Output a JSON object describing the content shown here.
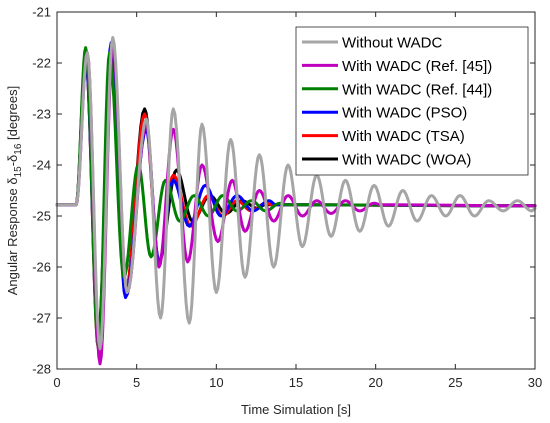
{
  "chart_data": {
    "type": "line",
    "xlabel": "Time Simulation [s]",
    "ylabel": {
      "prefix": "Angular Response ",
      "d1": "δ",
      "s1": "15",
      "mid": "-δ",
      "s2": "16",
      "suffix": " [degrees]"
    },
    "xlim": [
      0,
      30
    ],
    "ylim": [
      -28,
      -21
    ],
    "xticks": [
      0,
      5,
      10,
      15,
      20,
      25,
      30
    ],
    "yticks": [
      -28,
      -27,
      -26,
      -25,
      -24,
      -23,
      -22,
      -21
    ],
    "grid": false,
    "legend_position": "top-right",
    "steady_state": -24.78,
    "event_time": 1.2,
    "series": [
      {
        "name": "Without WADC",
        "color": "#a6a6a6",
        "peaks": [
          [
            1.9,
            -21.8
          ],
          [
            2.7,
            -27.6
          ],
          [
            3.5,
            -21.5
          ],
          [
            4.4,
            -26.5
          ],
          [
            5.6,
            -23.1
          ],
          [
            6.5,
            -27.0
          ],
          [
            7.3,
            -22.9
          ],
          [
            8.3,
            -27.1
          ],
          [
            9.1,
            -23.2
          ],
          [
            10.0,
            -26.5
          ],
          [
            10.9,
            -23.5
          ],
          [
            11.8,
            -26.2
          ],
          [
            12.7,
            -23.8
          ],
          [
            13.6,
            -26.0
          ],
          [
            14.5,
            -24.0
          ],
          [
            15.4,
            -25.6
          ],
          [
            16.3,
            -24.2
          ],
          [
            17.2,
            -25.4
          ],
          [
            18.1,
            -24.3
          ],
          [
            19.0,
            -25.3
          ],
          [
            19.9,
            -24.4
          ],
          [
            20.8,
            -25.2
          ],
          [
            21.7,
            -24.5
          ],
          [
            22.6,
            -25.1
          ],
          [
            23.5,
            -24.6
          ],
          [
            24.4,
            -25.0
          ],
          [
            25.3,
            -24.6
          ],
          [
            26.2,
            -25.0
          ],
          [
            27.1,
            -24.7
          ],
          [
            28.0,
            -24.9
          ],
          [
            28.9,
            -24.7
          ],
          [
            29.8,
            -24.9
          ]
        ],
        "end": -24.85
      },
      {
        "name": "With WADC (Ref. [45])",
        "color": "#bf00bf",
        "peaks": [
          [
            1.9,
            -21.8
          ],
          [
            2.7,
            -27.9
          ],
          [
            3.5,
            -21.7
          ],
          [
            4.4,
            -26.5
          ],
          [
            5.6,
            -23.2
          ],
          [
            6.4,
            -26.0
          ],
          [
            7.3,
            -23.3
          ],
          [
            8.2,
            -25.9
          ],
          [
            9.1,
            -24.0
          ],
          [
            10.1,
            -25.5
          ],
          [
            11.0,
            -24.3
          ],
          [
            11.8,
            -25.3
          ],
          [
            12.7,
            -24.5
          ],
          [
            13.6,
            -25.1
          ],
          [
            14.5,
            -24.6
          ],
          [
            15.4,
            -25.0
          ],
          [
            16.3,
            -24.7
          ],
          [
            17.2,
            -24.95
          ],
          [
            18.1,
            -24.7
          ],
          [
            19.0,
            -24.9
          ],
          [
            19.9,
            -24.75
          ]
        ],
        "end": -24.8
      },
      {
        "name": "With WADC (Ref. [44])",
        "color": "#008000",
        "peaks": [
          [
            1.8,
            -21.7
          ],
          [
            2.6,
            -27.6
          ],
          [
            3.3,
            -21.8
          ],
          [
            4.2,
            -26.2
          ],
          [
            5.1,
            -24.0
          ],
          [
            5.9,
            -25.8
          ],
          [
            6.8,
            -24.3
          ],
          [
            7.7,
            -25.1
          ],
          [
            8.6,
            -24.6
          ],
          [
            9.5,
            -25.0
          ],
          [
            10.4,
            -24.6
          ],
          [
            11.3,
            -24.9
          ],
          [
            12.2,
            -24.7
          ],
          [
            13.1,
            -24.9
          ],
          [
            14.0,
            -24.75
          ]
        ],
        "end": -24.8
      },
      {
        "name": "With WADC (PSO)",
        "color": "#0000ff",
        "peaks": [
          [
            1.8,
            -21.9
          ],
          [
            2.6,
            -27.5
          ],
          [
            3.4,
            -21.6
          ],
          [
            4.3,
            -26.6
          ],
          [
            5.6,
            -23.3
          ],
          [
            6.4,
            -25.9
          ],
          [
            7.3,
            -24.3
          ],
          [
            8.3,
            -25.2
          ],
          [
            9.3,
            -24.4
          ],
          [
            10.3,
            -25.0
          ],
          [
            11.3,
            -24.6
          ],
          [
            12.3,
            -24.9
          ],
          [
            13.3,
            -24.7
          ]
        ],
        "end": -24.8
      },
      {
        "name": "With WADC (TSA)",
        "color": "#ff0000",
        "peaks": [
          [
            1.8,
            -21.9
          ],
          [
            2.6,
            -27.6
          ],
          [
            3.4,
            -21.9
          ],
          [
            4.3,
            -26.5
          ],
          [
            5.5,
            -23.0
          ],
          [
            6.4,
            -25.9
          ],
          [
            7.3,
            -24.2
          ],
          [
            8.4,
            -25.2
          ],
          [
            9.5,
            -24.6
          ],
          [
            10.4,
            -25.0
          ],
          [
            11.3,
            -24.7
          ],
          [
            12.2,
            -24.9
          ],
          [
            13.1,
            -24.75
          ]
        ],
        "end": -24.8
      },
      {
        "name": "With WADC (WOA)",
        "color": "#000000",
        "peaks": [
          [
            1.8,
            -21.9
          ],
          [
            2.6,
            -27.3
          ],
          [
            3.4,
            -21.7
          ],
          [
            4.3,
            -26.5
          ],
          [
            5.5,
            -22.9
          ],
          [
            6.4,
            -25.9
          ],
          [
            7.5,
            -24.1
          ],
          [
            8.5,
            -25.1
          ],
          [
            9.6,
            -24.6
          ],
          [
            10.6,
            -24.95
          ],
          [
            11.6,
            -24.7
          ],
          [
            12.6,
            -24.85
          ]
        ],
        "end": -24.8
      }
    ]
  }
}
